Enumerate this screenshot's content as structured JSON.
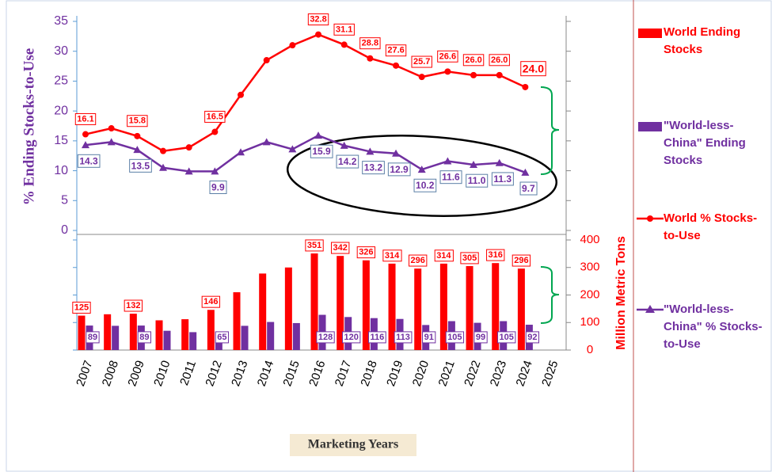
{
  "chart_data": {
    "type": "line",
    "ylabel": "% Ending Stocks-to-Use",
    "y2label": "Million Metric Tons",
    "xlabel": "Marketing Years",
    "categories": [
      "2007",
      "2008",
      "2009",
      "2010",
      "2011",
      "2012",
      "2013",
      "2014",
      "2015",
      "2016",
      "2017",
      "2018",
      "2019",
      "2020",
      "2021",
      "2022",
      "2023",
      "2024",
      "2025"
    ],
    "ylim": [
      0,
      35
    ],
    "yticks": [
      0,
      5,
      10,
      15,
      20,
      25,
      30,
      35
    ],
    "y2lim": [
      0,
      400
    ],
    "y2ticks": [
      0,
      100,
      200,
      300,
      400
    ],
    "series": [
      {
        "name": "World Ending Stocks",
        "type": "bar",
        "axis": "y2",
        "color": "#ff0000",
        "values": [
          125,
          130,
          132,
          108,
          112,
          146,
          210,
          278,
          300,
          351,
          342,
          326,
          314,
          296,
          314,
          305,
          316,
          296,
          null
        ],
        "value_labels": [
          "125",
          null,
          "132",
          null,
          null,
          "146",
          null,
          null,
          null,
          "351",
          "342",
          "326",
          "314",
          "296",
          "314",
          "305",
          "316",
          "296",
          null
        ]
      },
      {
        "name": "\"World-less-China\" Ending Stocks",
        "type": "bar",
        "axis": "y2",
        "color": "#7030a0",
        "values": [
          89,
          88,
          89,
          70,
          65,
          65,
          88,
          102,
          98,
          128,
          120,
          116,
          113,
          91,
          105,
          99,
          105,
          92,
          null
        ],
        "value_labels": [
          "89",
          null,
          "89",
          null,
          null,
          "65",
          null,
          null,
          null,
          "128",
          "120",
          "116",
          "113",
          "91",
          "105",
          "99",
          "105",
          "92",
          null
        ]
      },
      {
        "name": "World % Stocks-to-Use",
        "type": "line",
        "color": "#ff0000",
        "values": [
          16.1,
          17.1,
          15.8,
          13.3,
          13.9,
          16.5,
          22.7,
          28.5,
          31.0,
          32.8,
          31.1,
          28.8,
          27.6,
          25.7,
          26.6,
          26.0,
          26.0,
          24.0,
          null
        ],
        "value_labels": [
          "16.1",
          null,
          "15.8",
          null,
          null,
          "16.5",
          null,
          null,
          null,
          "32.8",
          "31.1",
          "28.8",
          "27.6",
          "25.7",
          "26.6",
          "26.0",
          "26.0",
          "24.0",
          null
        ]
      },
      {
        "name": "\"World-less-China\" % Stocks-to-Use",
        "type": "line",
        "color": "#7030a0",
        "values": [
          14.3,
          14.8,
          13.5,
          10.5,
          9.9,
          9.9,
          13.1,
          14.8,
          13.6,
          15.9,
          14.2,
          13.2,
          12.9,
          10.2,
          11.6,
          11.0,
          11.3,
          9.7,
          null
        ],
        "value_labels": [
          "14.3",
          null,
          "13.5",
          null,
          null,
          "9.9",
          null,
          null,
          null,
          "15.9",
          "14.2",
          "13.2",
          "12.9",
          "10.2",
          "11.6",
          "11.0",
          "11.3",
          "9.7",
          null
        ]
      }
    ]
  }
}
